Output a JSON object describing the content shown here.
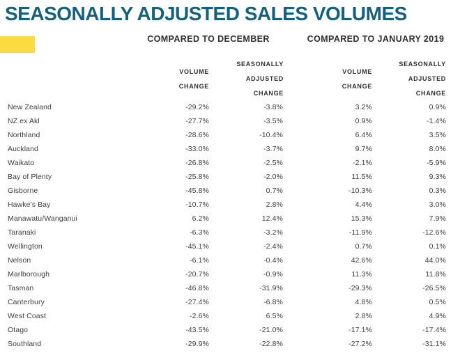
{
  "title": "SEASONALLY ADJUSTED SALES VOLUMES",
  "header": {
    "group_december": "COMPARED TO DECEMBER",
    "group_january": "COMPARED TO JANUARY 2019",
    "sub_volume": "VOLUME\nCHANGE",
    "sub_seasonal": "SEASONALLY\nADJUSTED\nCHANGE"
  },
  "colors": {
    "title": "#15607D",
    "accent_yellow": "#FBDB40",
    "header_text": "#2E2E2E",
    "body_text": "#3E3E3E"
  },
  "chart_data": {
    "type": "table",
    "title": "SEASONALLY ADJUSTED SALES VOLUMES",
    "column_groups": [
      {
        "label": "COMPARED TO DECEMBER",
        "columns": [
          "VOLUME CHANGE",
          "SEASONALLY ADJUSTED CHANGE"
        ]
      },
      {
        "label": "COMPARED TO JANUARY 2019",
        "columns": [
          "VOLUME CHANGE",
          "SEASONALLY ADJUSTED CHANGE"
        ]
      }
    ],
    "rows": [
      {
        "region": "New Zealand",
        "values": [
          "-29.2%",
          "-3.8%",
          "3.2%",
          "0.9%"
        ]
      },
      {
        "region": "NZ ex Akl",
        "values": [
          "-27.7%",
          "-3.5%",
          "0.9%",
          "-1.4%"
        ]
      },
      {
        "region": "Northland",
        "values": [
          "-28.6%",
          "-10.4%",
          "6.4%",
          "3.5%"
        ]
      },
      {
        "region": "Auckland",
        "values": [
          "-33.0%",
          "-3.7%",
          "9.7%",
          "8.0%"
        ]
      },
      {
        "region": "Waikato",
        "values": [
          "-26.8%",
          "-2.5%",
          "-2.1%",
          "-5.9%"
        ]
      },
      {
        "region": "Bay of Plenty",
        "values": [
          "-25.8%",
          "-2.0%",
          "11.5%",
          "9.3%"
        ]
      },
      {
        "region": "Gisborne",
        "values": [
          "-45.8%",
          "0.7%",
          "-10.3%",
          "0.3%"
        ]
      },
      {
        "region": "Hawke's Bay",
        "values": [
          "-10.7%",
          "2.8%",
          "4.4%",
          "3.0%"
        ]
      },
      {
        "region": "Manawatu/Wanganui",
        "values": [
          "6.2%",
          "12.4%",
          "15.3%",
          "7.9%"
        ]
      },
      {
        "region": "Taranaki",
        "values": [
          "-6.3%",
          "-3.2%",
          "-11.9%",
          "-12.6%"
        ]
      },
      {
        "region": "Wellington",
        "values": [
          "-45.1%",
          "-2.4%",
          "0.7%",
          "0.1%"
        ]
      },
      {
        "region": "Nelson",
        "values": [
          "-6.1%",
          "-0.4%",
          "42.6%",
          "44.0%"
        ]
      },
      {
        "region": "Marlborough",
        "values": [
          "-20.7%",
          "-0.9%",
          "11.3%",
          "11.8%"
        ]
      },
      {
        "region": "Tasman",
        "values": [
          "-46.8%",
          "-31.9%",
          "-29.3%",
          "-26.5%"
        ]
      },
      {
        "region": "Canterbury",
        "values": [
          "-27.4%",
          "-6.8%",
          "4.8%",
          "0.5%"
        ]
      },
      {
        "region": "West Coast",
        "values": [
          "-2.6%",
          "6.5%",
          "2.8%",
          "4.9%"
        ]
      },
      {
        "region": "Otago",
        "values": [
          "-43.5%",
          "-21.0%",
          "-17.1%",
          "-17.4%"
        ]
      },
      {
        "region": "Southland",
        "values": [
          "-29.9%",
          "-22.8%",
          "-27.2%",
          "-31.1%"
        ]
      }
    ]
  }
}
